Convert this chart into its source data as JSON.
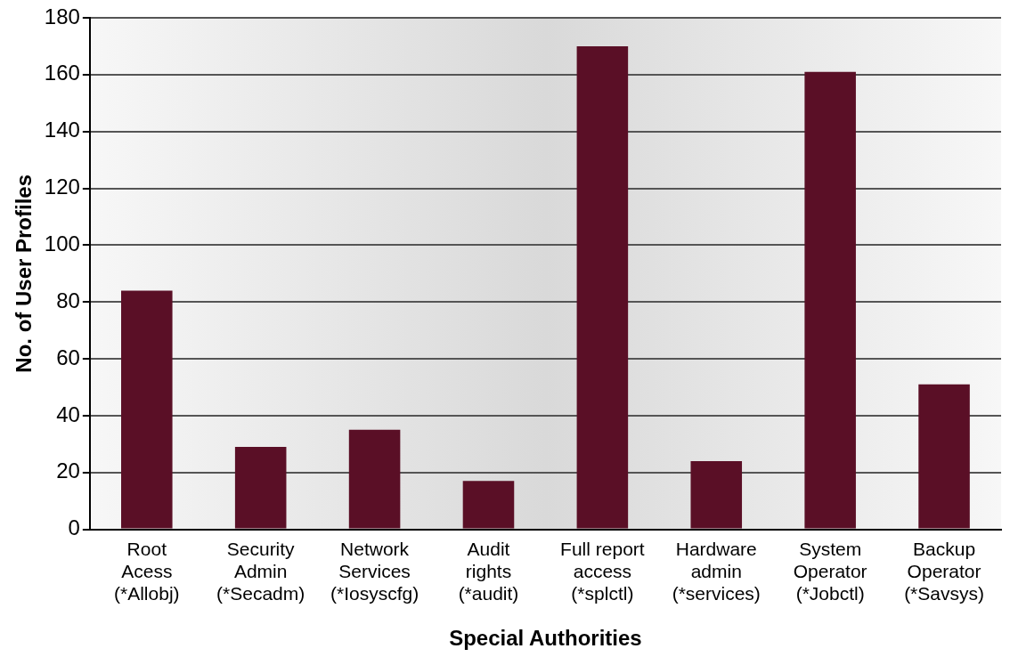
{
  "chart_data": {
    "type": "bar",
    "xlabel": "Special Authorities",
    "ylabel": "No. of User Profiles",
    "categories": [
      "Root\nAcess\n(*Allobj)",
      "Security\nAdmin\n(*Secadm)",
      "Network\nServices\n(*Iosyscfg)",
      "Audit\nrights\n(*audit)",
      "Full report\naccess\n(*splctl)",
      "Hardware\nadmin\n(*services)",
      "System\nOperator\n(*Jobctl)",
      "Backup\nOperator\n(*Savsys)"
    ],
    "values": [
      84,
      29,
      35,
      17,
      170,
      24,
      161,
      51
    ],
    "color": "#5a0f26",
    "ylim": [
      0,
      180
    ],
    "yticks": [
      0,
      20,
      40,
      60,
      80,
      100,
      120,
      140,
      160,
      180
    ],
    "grid": "y",
    "legend": false
  }
}
